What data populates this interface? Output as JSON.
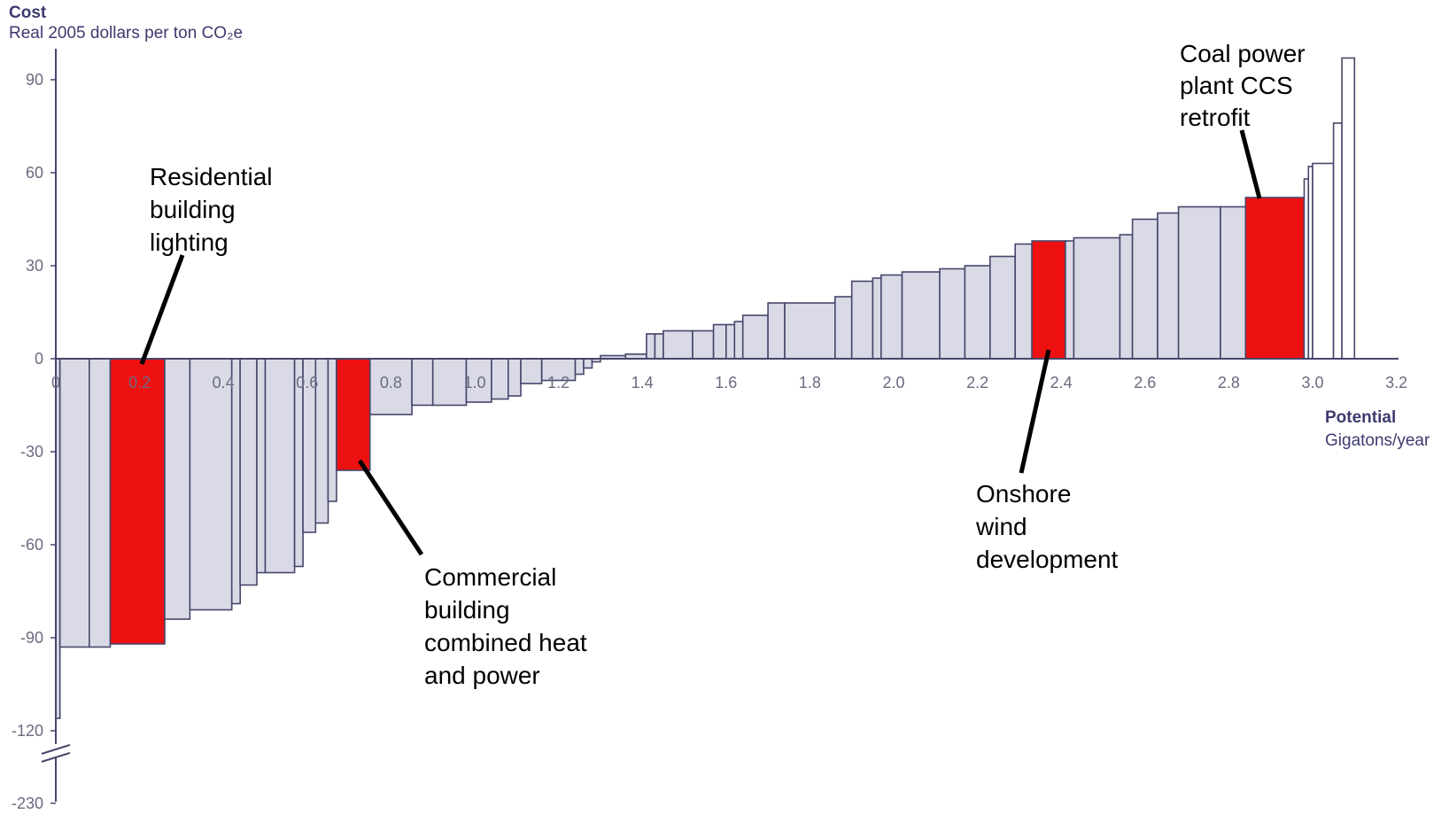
{
  "chart_data": {
    "type": "bar",
    "subtype": "marginal-abatement-cost-curve",
    "ylabel": "Cost",
    "ylabel_sub": "Real 2005 dollars per ton CO₂e",
    "xlabel": "Potential",
    "xlabel_sub": "Gigatons/year",
    "xlim": [
      0,
      3.2
    ],
    "ylim": [
      -230,
      100
    ],
    "axis_break": true,
    "x_ticks": [
      "0",
      "0.2",
      "0.4",
      "0.6",
      "0.8",
      "1.0",
      "1.2",
      "1.4",
      "1.6",
      "1.8",
      "2.0",
      "2.2",
      "2.4",
      "2.6",
      "2.8",
      "3.0",
      "3.2"
    ],
    "y_ticks": [
      "90",
      "60",
      "30",
      "0",
      "-30",
      "-60",
      "-90",
      "-120",
      "-230"
    ],
    "colors": {
      "bar_fill": "#d9dae6",
      "bar_stroke": "#46466b",
      "highlight": "#ee1111",
      "callout_line": "#000000"
    },
    "series": [
      {
        "values": [
          {
            "x0": 0.0,
            "x1": 0.01,
            "y": -116
          },
          {
            "x0": 0.01,
            "x1": 0.08,
            "y": -93
          },
          {
            "x0": 0.08,
            "x1": 0.13,
            "y": -93
          },
          {
            "x0": 0.13,
            "x1": 0.26,
            "y": -92,
            "highlight": true
          },
          {
            "x0": 0.26,
            "x1": 0.32,
            "y": -84
          },
          {
            "x0": 0.32,
            "x1": 0.42,
            "y": -81
          },
          {
            "x0": 0.42,
            "x1": 0.44,
            "y": -79
          },
          {
            "x0": 0.44,
            "x1": 0.48,
            "y": -73
          },
          {
            "x0": 0.48,
            "x1": 0.5,
            "y": -69
          },
          {
            "x0": 0.5,
            "x1": 0.57,
            "y": -69
          },
          {
            "x0": 0.57,
            "x1": 0.59,
            "y": -67
          },
          {
            "x0": 0.59,
            "x1": 0.62,
            "y": -56
          },
          {
            "x0": 0.62,
            "x1": 0.65,
            "y": -53
          },
          {
            "x0": 0.65,
            "x1": 0.67,
            "y": -46
          },
          {
            "x0": 0.67,
            "x1": 0.75,
            "y": -36,
            "highlight": true
          },
          {
            "x0": 0.75,
            "x1": 0.85,
            "y": -18
          },
          {
            "x0": 0.85,
            "x1": 0.9,
            "y": -15
          },
          {
            "x0": 0.9,
            "x1": 0.98,
            "y": -15
          },
          {
            "x0": 0.98,
            "x1": 1.04,
            "y": -14
          },
          {
            "x0": 1.04,
            "x1": 1.08,
            "y": -13
          },
          {
            "x0": 1.08,
            "x1": 1.11,
            "y": -12
          },
          {
            "x0": 1.11,
            "x1": 1.16,
            "y": -8
          },
          {
            "x0": 1.16,
            "x1": 1.24,
            "y": -7
          },
          {
            "x0": 1.24,
            "x1": 1.26,
            "y": -5
          },
          {
            "x0": 1.26,
            "x1": 1.28,
            "y": -3
          },
          {
            "x0": 1.28,
            "x1": 1.3,
            "y": -1
          },
          {
            "x0": 1.3,
            "x1": 1.36,
            "y": 1
          },
          {
            "x0": 1.36,
            "x1": 1.41,
            "y": 1.5
          },
          {
            "x0": 1.41,
            "x1": 1.43,
            "y": 8
          },
          {
            "x0": 1.43,
            "x1": 1.45,
            "y": 8
          },
          {
            "x0": 1.45,
            "x1": 1.52,
            "y": 9
          },
          {
            "x0": 1.52,
            "x1": 1.57,
            "y": 9
          },
          {
            "x0": 1.57,
            "x1": 1.6,
            "y": 11
          },
          {
            "x0": 1.6,
            "x1": 1.62,
            "y": 11
          },
          {
            "x0": 1.62,
            "x1": 1.64,
            "y": 12
          },
          {
            "x0": 1.64,
            "x1": 1.7,
            "y": 14
          },
          {
            "x0": 1.7,
            "x1": 1.74,
            "y": 18
          },
          {
            "x0": 1.74,
            "x1": 1.86,
            "y": 18
          },
          {
            "x0": 1.86,
            "x1": 1.9,
            "y": 20
          },
          {
            "x0": 1.9,
            "x1": 1.95,
            "y": 25
          },
          {
            "x0": 1.95,
            "x1": 1.97,
            "y": 26
          },
          {
            "x0": 1.97,
            "x1": 2.02,
            "y": 27
          },
          {
            "x0": 2.02,
            "x1": 2.11,
            "y": 28
          },
          {
            "x0": 2.11,
            "x1": 2.17,
            "y": 29
          },
          {
            "x0": 2.17,
            "x1": 2.23,
            "y": 30
          },
          {
            "x0": 2.23,
            "x1": 2.29,
            "y": 33
          },
          {
            "x0": 2.29,
            "x1": 2.33,
            "y": 37
          },
          {
            "x0": 2.33,
            "x1": 2.41,
            "y": 38,
            "highlight": true
          },
          {
            "x0": 2.41,
            "x1": 2.43,
            "y": 38
          },
          {
            "x0": 2.43,
            "x1": 2.54,
            "y": 39
          },
          {
            "x0": 2.54,
            "x1": 2.57,
            "y": 40
          },
          {
            "x0": 2.57,
            "x1": 2.63,
            "y": 45
          },
          {
            "x0": 2.63,
            "x1": 2.68,
            "y": 47
          },
          {
            "x0": 2.68,
            "x1": 2.78,
            "y": 49
          },
          {
            "x0": 2.78,
            "x1": 2.84,
            "y": 49
          },
          {
            "x0": 2.84,
            "x1": 2.98,
            "y": 52,
            "highlight": true
          },
          {
            "x0": 2.98,
            "x1": 2.99,
            "y": 58,
            "open": true
          },
          {
            "x0": 2.99,
            "x1": 3.0,
            "y": 62,
            "open": true
          },
          {
            "x0": 3.0,
            "x1": 3.05,
            "y": 63,
            "open": true
          },
          {
            "x0": 3.05,
            "x1": 3.07,
            "y": 76,
            "open": true
          },
          {
            "x0": 3.07,
            "x1": 3.1,
            "y": 97,
            "open": true
          }
        ]
      }
    ],
    "annotations": [
      {
        "text": "Residential building lighting",
        "lines": [
          "Residential",
          "building",
          "lighting"
        ]
      },
      {
        "text": "Commercial building combined heat and power",
        "lines": [
          "Commercial",
          "building",
          "combined heat",
          "and power"
        ]
      },
      {
        "text": "Onshore wind development",
        "lines": [
          "Onshore",
          "wind",
          "development"
        ]
      },
      {
        "text": "Coal power plant CCS retrofit",
        "lines": [
          "Coal power",
          "plant CCS",
          "retrofit"
        ]
      }
    ]
  }
}
